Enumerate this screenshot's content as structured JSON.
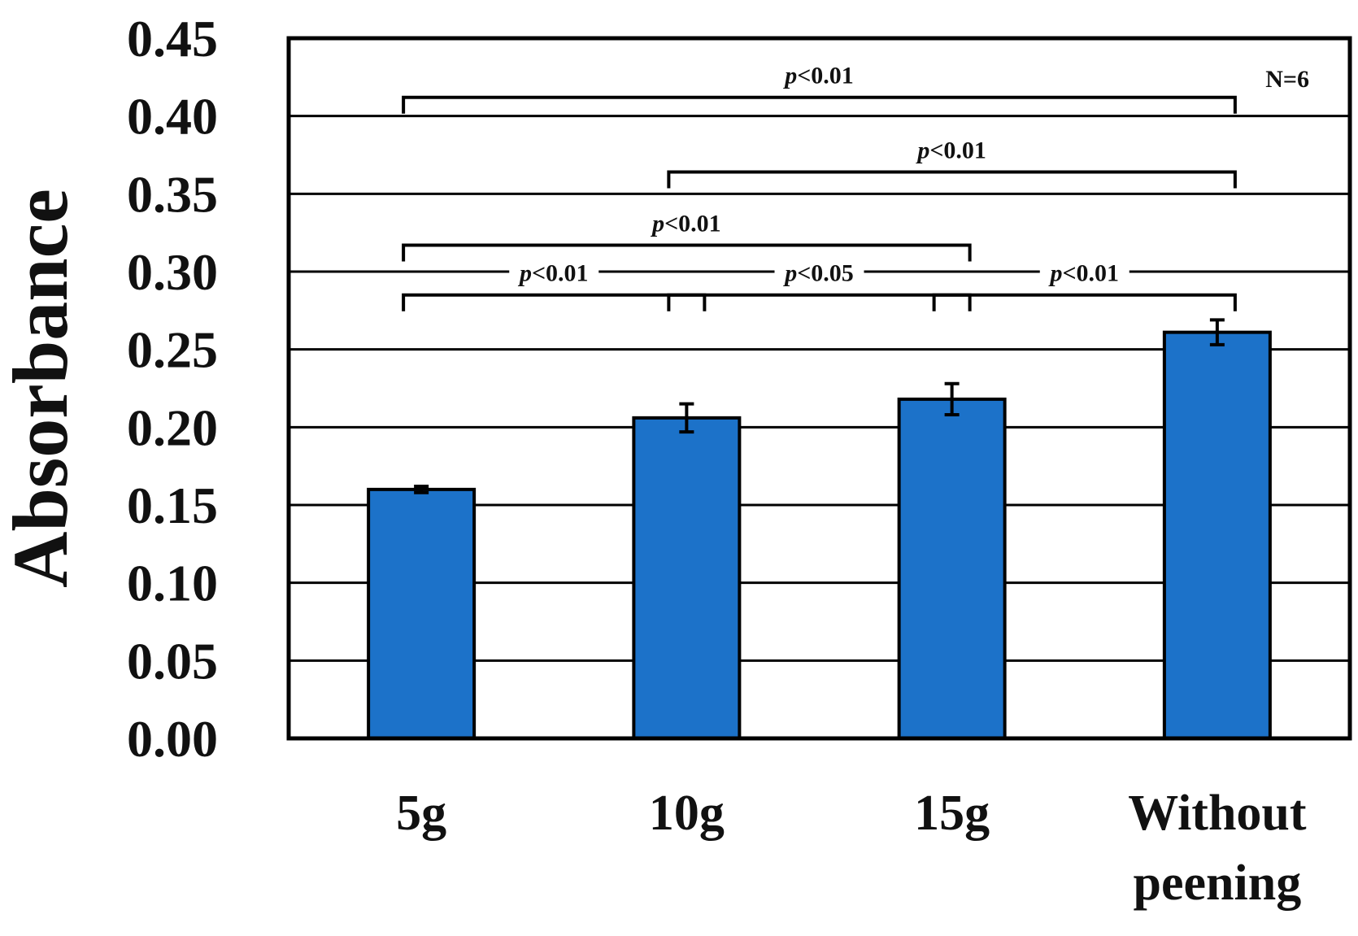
{
  "chart_data": {
    "type": "bar",
    "title": "",
    "xlabel": "",
    "ylabel": "Absorbance",
    "ylim": [
      0,
      0.45
    ],
    "yticks": [
      "0.00",
      "0.05",
      "0.10",
      "0.15",
      "0.20",
      "0.25",
      "0.30",
      "0.35",
      "0.40",
      "0.45"
    ],
    "grid": true,
    "categories": [
      [
        "5g"
      ],
      [
        "10g"
      ],
      [
        "15g"
      ],
      [
        "Without",
        "peening"
      ]
    ],
    "series": [
      {
        "values": [
          0.16,
          0.206,
          0.218,
          0.261
        ],
        "errors": [
          0.002,
          0.009,
          0.01,
          0.008
        ],
        "color": "#1c72c9"
      }
    ],
    "annotations": {
      "n_label": "N=6",
      "comparisons": [
        {
          "from": 0,
          "to": 1,
          "p_symbol": "p",
          "p_text": "<0.01",
          "bracket_y": 0.285
        },
        {
          "from": 1,
          "to": 2,
          "p_symbol": "p",
          "p_text": "<0.05",
          "bracket_y": 0.285
        },
        {
          "from": 2,
          "to": 3,
          "p_symbol": "p",
          "p_text": "<0.01",
          "bracket_y": 0.285
        },
        {
          "from": 0,
          "to": 2,
          "p_symbol": "p",
          "p_text": "<0.01",
          "bracket_y": 0.317
        },
        {
          "from": 1,
          "to": 3,
          "p_symbol": "p",
          "p_text": "<0.01",
          "bracket_y": 0.364
        },
        {
          "from": 0,
          "to": 3,
          "p_symbol": "p",
          "p_text": "<0.01",
          "bracket_y": 0.412
        }
      ]
    }
  }
}
